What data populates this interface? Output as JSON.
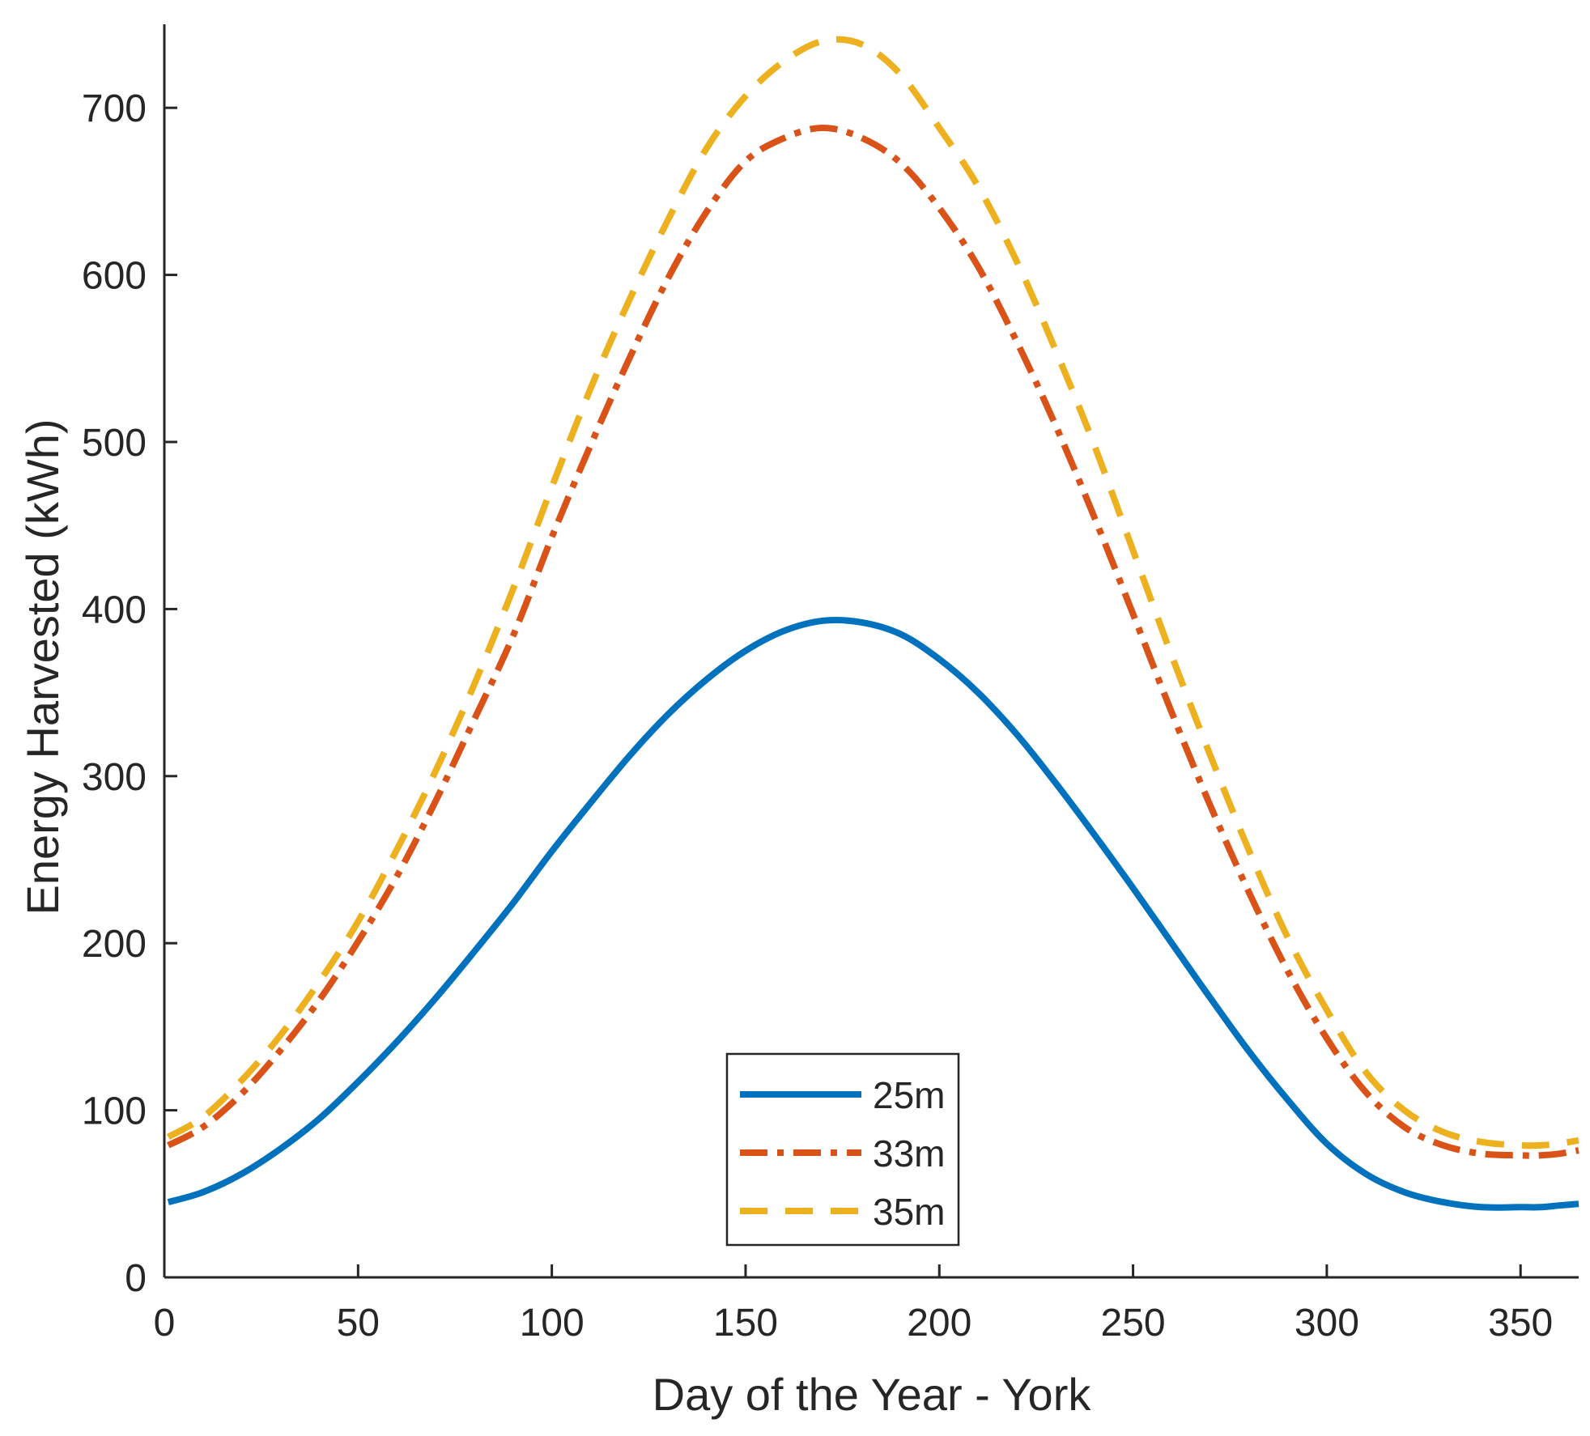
{
  "chart_data": {
    "type": "line",
    "title": "",
    "xlabel": "Day of the Year - York",
    "ylabel": "Energy Harvested (kWh)",
    "xlim": [
      0,
      365
    ],
    "ylim": [
      0,
      750
    ],
    "xticks": [
      0,
      50,
      100,
      150,
      200,
      250,
      300,
      350
    ],
    "yticks": [
      0,
      100,
      200,
      300,
      400,
      500,
      600,
      700
    ],
    "grid": false,
    "legend_position": "bottom-center",
    "x": [
      1,
      10,
      20,
      30,
      40,
      50,
      60,
      70,
      80,
      90,
      100,
      110,
      120,
      130,
      140,
      150,
      160,
      170,
      180,
      190,
      200,
      210,
      220,
      230,
      240,
      250,
      260,
      270,
      280,
      290,
      300,
      310,
      320,
      330,
      340,
      350,
      355,
      360,
      365
    ],
    "series": [
      {
        "name": "25m",
        "color": "#0072BD",
        "style": "solid",
        "values": [
          45,
          51,
          62,
          77,
          95,
          117,
          141,
          167,
          195,
          224,
          255,
          284,
          312,
          337,
          358,
          375,
          387,
          393,
          392,
          385,
          370,
          350,
          325,
          296,
          265,
          233,
          200,
          167,
          135,
          106,
          80,
          62,
          51,
          45,
          42,
          42,
          42,
          43,
          44
        ]
      },
      {
        "name": "33m",
        "color": "#D95319",
        "style": "dashdot",
        "values": [
          79,
          90,
          110,
          136,
          166,
          201,
          240,
          285,
          334,
          384,
          443,
          498,
          550,
          598,
          638,
          668,
          682,
          688,
          682,
          667,
          640,
          605,
          560,
          510,
          455,
          397,
          338,
          282,
          230,
          183,
          143,
          111,
          90,
          79,
          74,
          73,
          73,
          74,
          76
        ]
      },
      {
        "name": "35m",
        "color": "#EDB120",
        "style": "dashed",
        "values": [
          84,
          96,
          118,
          145,
          177,
          213,
          256,
          303,
          355,
          412,
          473,
          532,
          585,
          633,
          676,
          707,
          728,
          740,
          738,
          720,
          688,
          653,
          608,
          555,
          498,
          435,
          372,
          312,
          255,
          203,
          160,
          123,
          100,
          87,
          81,
          79,
          79,
          80,
          82
        ]
      }
    ]
  }
}
